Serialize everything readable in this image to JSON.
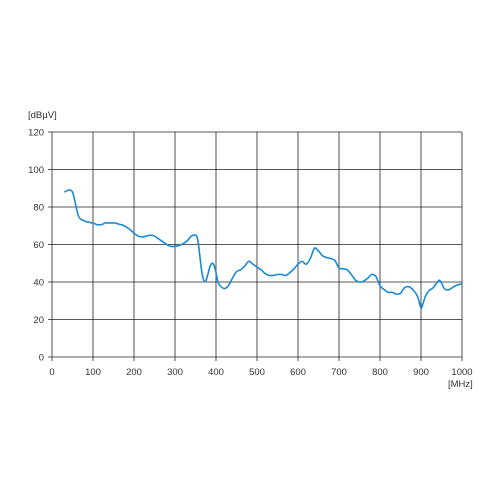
{
  "chart_data": {
    "type": "line",
    "ylabel": "[dBµV]",
    "xlabel": "[MHz]",
    "xlim": [
      0,
      1000
    ],
    "ylim": [
      0,
      120
    ],
    "x_ticks": [
      0,
      100,
      200,
      300,
      400,
      500,
      600,
      700,
      800,
      900,
      1000
    ],
    "y_ticks": [
      0,
      20,
      40,
      60,
      80,
      100,
      120
    ],
    "grid": true,
    "series_color": "#1a8ad4",
    "grid_color": "#222222",
    "series": [
      {
        "x": [
          30,
          35,
          40,
          45,
          50,
          55,
          60,
          65,
          70,
          75,
          80,
          85,
          90,
          95,
          100,
          105,
          110,
          115,
          120,
          125,
          130,
          135,
          140,
          145,
          150,
          155,
          160,
          170,
          180,
          190,
          200,
          210,
          220,
          230,
          240,
          250,
          260,
          270,
          280,
          290,
          300,
          310,
          320,
          330,
          340,
          350,
          355,
          360,
          365,
          370,
          375,
          380,
          385,
          390,
          395,
          400,
          405,
          410,
          420,
          430,
          440,
          450,
          460,
          470,
          480,
          490,
          500,
          510,
          520,
          530,
          540,
          550,
          560,
          570,
          580,
          590,
          600,
          610,
          620,
          630,
          640,
          650,
          660,
          670,
          680,
          690,
          700,
          710,
          720,
          730,
          740,
          750,
          760,
          770,
          780,
          790,
          800,
          810,
          820,
          830,
          840,
          850,
          860,
          870,
          880,
          890,
          895,
          900,
          905,
          910,
          915,
          920,
          930,
          940,
          945,
          950,
          955,
          960,
          970,
          980,
          990,
          1000
        ],
        "y": [
          88,
          88.5,
          89,
          89,
          88,
          84,
          79,
          75,
          73.5,
          73,
          72.5,
          72,
          72,
          71.5,
          71.5,
          71,
          70.5,
          70.5,
          70.5,
          71,
          71.5,
          71.5,
          71.5,
          71.5,
          71.5,
          71.5,
          71,
          70.5,
          69.5,
          68,
          66,
          64.5,
          64,
          64.5,
          65,
          64.5,
          63,
          61.5,
          60,
          59,
          59,
          59.5,
          60.5,
          62,
          64.5,
          65,
          63,
          55,
          46,
          41,
          40.5,
          44,
          48,
          50,
          49,
          45,
          40,
          38,
          36.5,
          38,
          42,
          45.5,
          46.5,
          48.5,
          51,
          49.5,
          48,
          46.5,
          44.5,
          43.5,
          43.5,
          44,
          44,
          43.5,
          45,
          47,
          49.5,
          51,
          49.5,
          52.5,
          58,
          56.5,
          54,
          53,
          52.5,
          51.5,
          47.5,
          47,
          46.5,
          44,
          41,
          40,
          40.5,
          42,
          44,
          43,
          38,
          36,
          34.5,
          34.5,
          33.5,
          34,
          37,
          37.5,
          36,
          33,
          30,
          26,
          28.5,
          32,
          34,
          35.5,
          37,
          40,
          41,
          39.5,
          37,
          36,
          36,
          37.5,
          38.5,
          39
        ]
      }
    ]
  }
}
